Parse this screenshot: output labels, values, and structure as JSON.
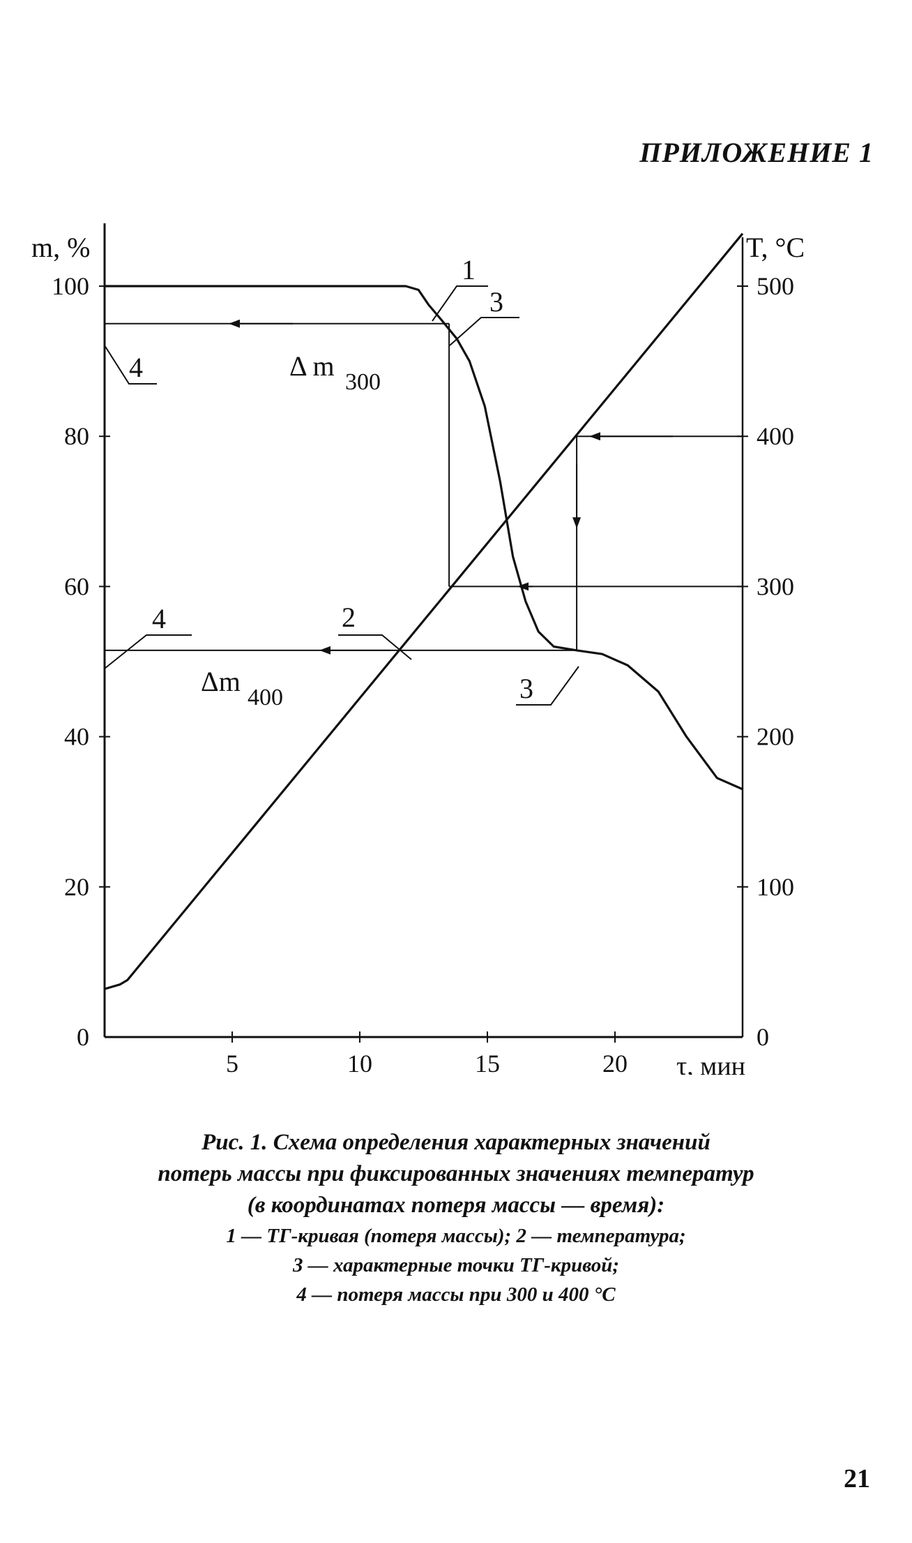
{
  "header": {
    "appendix": "ПРИЛОЖЕНИЕ 1"
  },
  "chart_data": {
    "type": "line",
    "y_left_label": "m, %",
    "y_right_label": "T, °C",
    "x_label": "τ, мин",
    "x_ticks": [
      5,
      10,
      15,
      20
    ],
    "x_tick_labels": [
      "5",
      "10",
      "15",
      "20"
    ],
    "x_range": [
      0,
      25
    ],
    "y_left_ticks": [
      0,
      20,
      40,
      60,
      80,
      100
    ],
    "y_left_tick_labels": [
      "0",
      "20",
      "40",
      "60",
      "80",
      "100"
    ],
    "y_left_range": [
      0,
      100
    ],
    "y_right_ticks": [
      0,
      100,
      200,
      300,
      400,
      500
    ],
    "y_right_tick_labels": [
      "0",
      "100",
      "200",
      "300",
      "400",
      "500"
    ],
    "y_right_range": [
      0,
      500
    ],
    "series": [
      {
        "name": "1",
        "axis": "left",
        "points": [
          [
            0,
            100
          ],
          [
            11.8,
            100
          ],
          [
            12.3,
            99.5
          ],
          [
            12.7,
            97.5
          ],
          [
            13.2,
            95.5
          ],
          [
            13.8,
            93
          ],
          [
            14.3,
            90
          ],
          [
            14.9,
            84
          ],
          [
            15.5,
            74
          ],
          [
            16.0,
            64
          ],
          [
            16.5,
            58
          ],
          [
            17.0,
            54
          ],
          [
            17.6,
            52
          ],
          [
            18.5,
            51.5
          ],
          [
            19.5,
            51
          ],
          [
            20.5,
            49.5
          ],
          [
            21.7,
            46
          ],
          [
            22.8,
            40
          ],
          [
            24.0,
            34.5
          ],
          [
            25.0,
            33
          ]
        ]
      },
      {
        "name": "2",
        "axis": "right",
        "points": [
          [
            0,
            32
          ],
          [
            0.6,
            35
          ],
          [
            0.9,
            38
          ],
          [
            25.0,
            535
          ]
        ]
      }
    ],
    "annotations": [
      {
        "text": "Δ m",
        "subscript": "300",
        "y_level": 95,
        "from_x": 13.5
      },
      {
        "text": "Δm",
        "subscript": "400",
        "y_level": 51.5,
        "from_x": 18.5
      }
    ],
    "callout_labels": [
      "1",
      "2",
      "3",
      "3",
      "4",
      "4"
    ],
    "grid": false
  },
  "caption": {
    "line1": "Рис. 1. Схема определения характерных значений",
    "line2": "потерь массы при фиксированных значениях температур",
    "line3": "(в координатах потеря массы — время):",
    "line4": "1 — ТГ-кривая (потеря массы); 2 — температура;",
    "line5": "3 — характерные точки ТГ-кривой;",
    "line6": "4 — потеря массы при 300 и 400 °С"
  },
  "page_number": "21"
}
